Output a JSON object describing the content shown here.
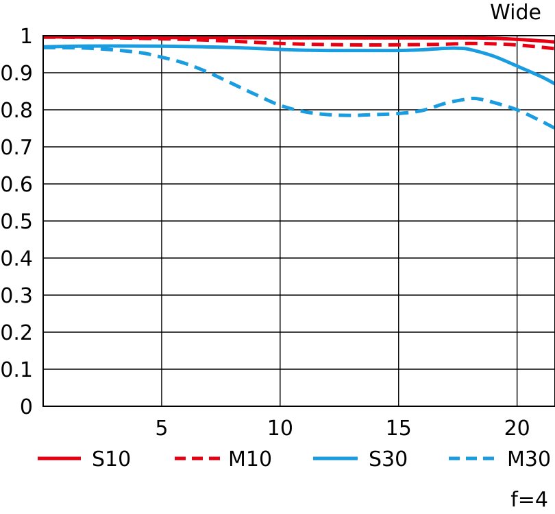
{
  "chart_data": {
    "type": "line",
    "title": "Wide",
    "footer": "f=4",
    "xlabel": "",
    "ylabel": "",
    "xlim": [
      0,
      21.6
    ],
    "ylim": [
      0,
      1
    ],
    "x_ticks": [
      5,
      10,
      15,
      20
    ],
    "x_tick_labels": [
      "5",
      "10",
      "15",
      "20"
    ],
    "y_ticks": [
      0,
      0.1,
      0.2,
      0.3,
      0.4,
      0.5,
      0.6,
      0.7,
      0.8,
      0.9,
      1
    ],
    "y_tick_labels": [
      "0",
      "0.1",
      "0.2",
      "0.3",
      "0.4",
      "0.5",
      "0.6",
      "0.7",
      "0.8",
      "0.9",
      "1"
    ],
    "grid": true,
    "legend_position": "bottom",
    "series": [
      {
        "name": "S10",
        "color": "#e60012",
        "dash": "solid",
        "x": [
          0,
          2,
          4,
          6,
          8,
          10,
          12,
          14,
          16,
          17,
          18,
          19,
          20,
          21,
          21.6
        ],
        "y": [
          0.997,
          0.996,
          0.995,
          0.995,
          0.995,
          0.994,
          0.994,
          0.994,
          0.994,
          0.994,
          0.994,
          0.993,
          0.99,
          0.986,
          0.983
        ]
      },
      {
        "name": "M10",
        "color": "#e60012",
        "dash": "dashed",
        "x": [
          0,
          2,
          4,
          6,
          8,
          10,
          12,
          14,
          16,
          17,
          18,
          19,
          20,
          21,
          21.6
        ],
        "y": [
          0.996,
          0.995,
          0.993,
          0.99,
          0.985,
          0.979,
          0.976,
          0.975,
          0.976,
          0.977,
          0.979,
          0.978,
          0.975,
          0.969,
          0.965
        ]
      },
      {
        "name": "S30",
        "color": "#1a9de0",
        "dash": "solid",
        "x": [
          0,
          2,
          4,
          6,
          8,
          10,
          11,
          12,
          13,
          14,
          15,
          16,
          17,
          17.6,
          18,
          19,
          20,
          21,
          21.6
        ],
        "y": [
          0.97,
          0.972,
          0.972,
          0.971,
          0.968,
          0.963,
          0.961,
          0.96,
          0.96,
          0.96,
          0.96,
          0.962,
          0.966,
          0.966,
          0.963,
          0.945,
          0.918,
          0.89,
          0.87
        ]
      },
      {
        "name": "M30",
        "color": "#1a9de0",
        "dash": "dashed",
        "x": [
          0,
          2,
          4,
          5,
          6,
          7,
          8,
          9,
          10,
          11,
          12,
          13,
          14,
          15,
          16,
          17,
          18,
          18.4,
          19,
          20,
          21,
          21.6
        ],
        "y": [
          0.968,
          0.966,
          0.955,
          0.942,
          0.925,
          0.9,
          0.87,
          0.84,
          0.812,
          0.795,
          0.787,
          0.785,
          0.787,
          0.79,
          0.798,
          0.818,
          0.83,
          0.829,
          0.82,
          0.8,
          0.77,
          0.75
        ]
      }
    ]
  }
}
